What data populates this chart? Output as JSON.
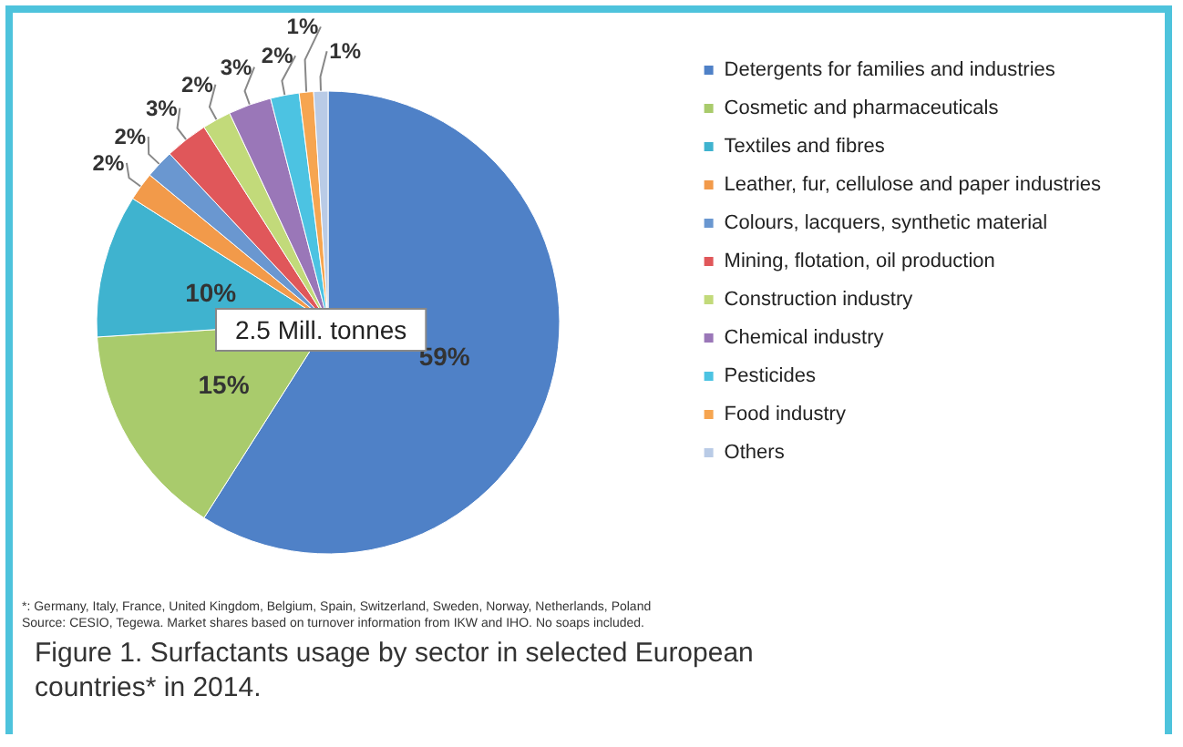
{
  "chart_data": {
    "type": "pie",
    "title": "Figure 1. Surfactants usage by sector in selected European countries* in 2014.",
    "categories": [
      "Detergents for families and industries",
      "Cosmetic and pharmaceuticals",
      "Textiles and fibres",
      "Leather, fur, cellulose and paper industries",
      "Colours, lacquers, synthetic material",
      "Mining, flotation, oil production",
      "Construction industry",
      "Chemical industry",
      "Pesticides",
      "Food industry",
      "Others"
    ],
    "values": [
      59,
      15,
      10,
      2,
      2,
      3,
      2,
      3,
      2,
      1,
      1
    ],
    "colors": [
      "#4f81c7",
      "#a9cb6c",
      "#3fb3cf",
      "#f29a4a",
      "#6a97d0",
      "#e0575a",
      "#c2da7a",
      "#9a77b8",
      "#4cc3e2",
      "#f6a550",
      "#b9cbe6"
    ],
    "value_labels": [
      "59%",
      "15%",
      "10%",
      "2%",
      "2%",
      "3%",
      "2%",
      "3%",
      "2%",
      "1%",
      "1%"
    ],
    "legend": "right",
    "annotations": [
      "2.5 Mill. tonnes",
      "*: Germany, Italy, France, United Kingdom, Belgium, Spain, Switzerland, Sweden, Norway, Netherlands, Poland",
      "Source: CESIO, Tegewa. Market shares based on turnover information from IKW and IHO. No soaps included."
    ]
  }
}
